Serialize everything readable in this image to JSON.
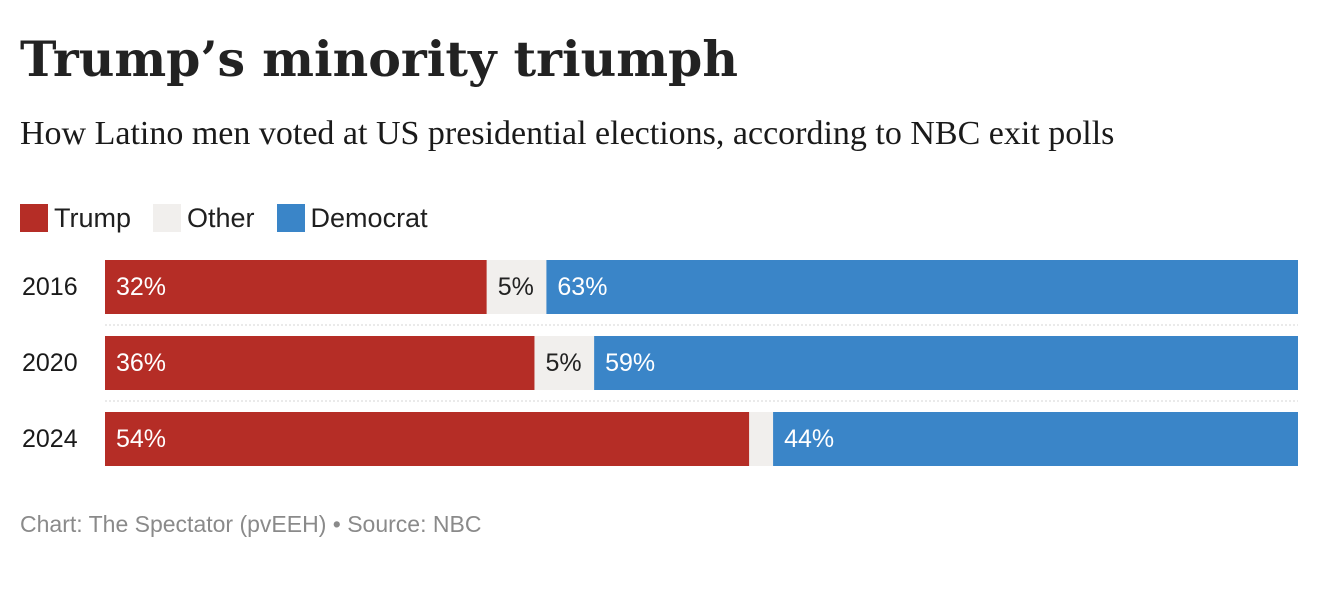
{
  "title": "Trump’s minority triumph",
  "subtitle": "How Latino men voted at US presidential elections, according to NBC exit polls",
  "footer": {
    "credit": "Chart: The Spectator (pvEEH)",
    "separator": "•",
    "source": "Source: NBC"
  },
  "chart_data": {
    "type": "bar",
    "orientation": "horizontal",
    "stacked": true,
    "percent_stacked": true,
    "categories": [
      "2016",
      "2020",
      "2024"
    ],
    "series": [
      {
        "name": "Trump",
        "color": "#b52d26",
        "values": [
          32,
          36,
          54
        ],
        "labels": [
          "32%",
          "36%",
          "54%"
        ]
      },
      {
        "name": "Other",
        "color": "#f1efed",
        "values": [
          5,
          5,
          2
        ],
        "labels": [
          "5%",
          "5%",
          ""
        ]
      },
      {
        "name": "Democrat",
        "color": "#3a85c8",
        "values": [
          63,
          59,
          44
        ],
        "labels": [
          "63%",
          "59%",
          "44%"
        ]
      }
    ],
    "legend_position": "top-left",
    "grid": false,
    "xlim": [
      0,
      100
    ]
  }
}
